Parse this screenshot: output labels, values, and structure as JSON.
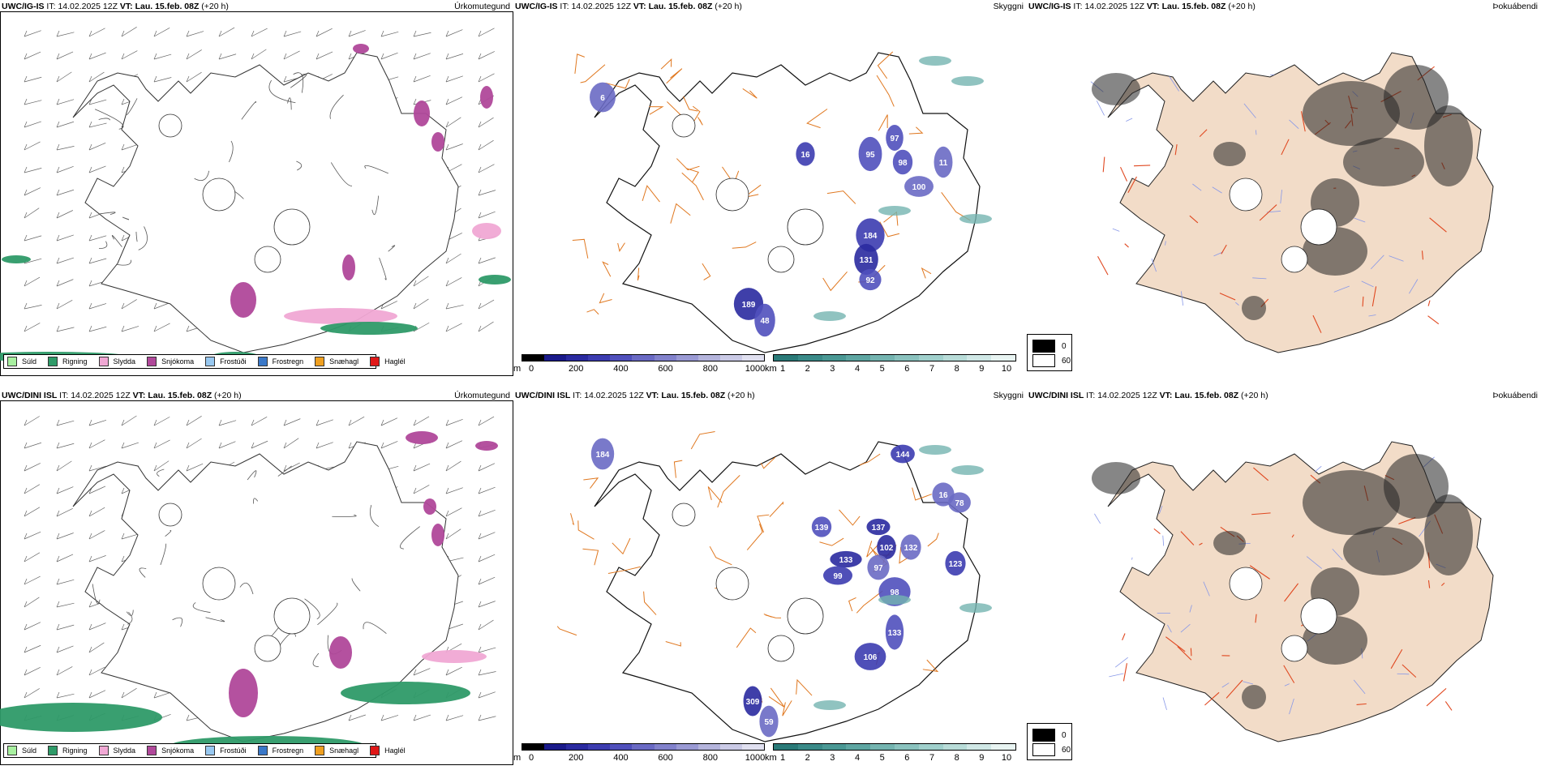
{
  "rows": [
    {
      "model": "UWC/IG-IS",
      "precip_title": "Úrkomutegund",
      "cloud_title": "Skyggni",
      "fog_title": "Þokuábendi",
      "it_label": "IT:",
      "it_value": "14.02.2025 12Z",
      "vt_label": "VT:",
      "vt_value": "Lau. 15.feb. 08Z",
      "lead": "(+20 h)",
      "cloud_values": [
        "6",
        "97",
        "98",
        "95",
        "16",
        "100",
        "184",
        "131",
        "92",
        "189",
        "48",
        "11"
      ]
    },
    {
      "model": "UWC/DINI ISL",
      "precip_title": "Úrkomutegund",
      "cloud_title": "Skyggni",
      "fog_title": "Þokuábendi",
      "it_label": "IT:",
      "it_value": "14.02.2025 12Z",
      "vt_label": "VT:",
      "vt_value": "Lau. 15.feb. 08Z",
      "lead": "(+20 h)",
      "cloud_values": [
        "184",
        "144",
        "16",
        "137",
        "102",
        "133",
        "139",
        "97",
        "99",
        "98",
        "132",
        "133",
        "106",
        "309",
        "59",
        "78",
        "123"
      ]
    }
  ],
  "precip_legend": [
    {
      "label": "Súld",
      "color": "#a8f0a0"
    },
    {
      "label": "Rigning",
      "color": "#2e9a68"
    },
    {
      "label": "Slydda",
      "color": "#f0a8d4"
    },
    {
      "label": "Snjókoma",
      "color": "#b0489a"
    },
    {
      "label": "Frostúði",
      "color": "#98c8f0"
    },
    {
      "label": "Frostregn",
      "color": "#3a78c8"
    },
    {
      "label": "Snæhagl",
      "color": "#f0a020"
    },
    {
      "label": "Haglél",
      "color": "#e01818"
    }
  ],
  "cloudbase_bar": {
    "unit": "m",
    "ticks": [
      "0",
      "200",
      "400",
      "600",
      "800",
      "1000"
    ],
    "colors": [
      "#000000",
      "#1a1a8a",
      "#2a2aa0",
      "#3c3cb0",
      "#5050bc",
      "#6a6ac4",
      "#8282cc",
      "#9a9ad4",
      "#b4b4dc",
      "#cacae6",
      "#e0e0f0"
    ]
  },
  "visibility_bar": {
    "unit": "km",
    "ticks": [
      "1",
      "2",
      "3",
      "4",
      "5",
      "6",
      "7",
      "8",
      "9",
      "10"
    ],
    "colors": [
      "#2a7a78",
      "#3a8a88",
      "#4a9894",
      "#5ea6a2",
      "#74b4b0",
      "#8ac2be",
      "#a0d0cc",
      "#b8dcd8",
      "#d0e8e6",
      "#e8f4f2"
    ]
  },
  "fog_key": [
    {
      "label": "0",
      "color": "#000000"
    },
    {
      "label": "60",
      "color": "#ffffff"
    }
  ],
  "colors": {
    "road": "#e07820",
    "fog_land": "#f2dcc8",
    "fog_road": "#e04820",
    "fog_river": "#8898e8",
    "coast": "#222222"
  }
}
